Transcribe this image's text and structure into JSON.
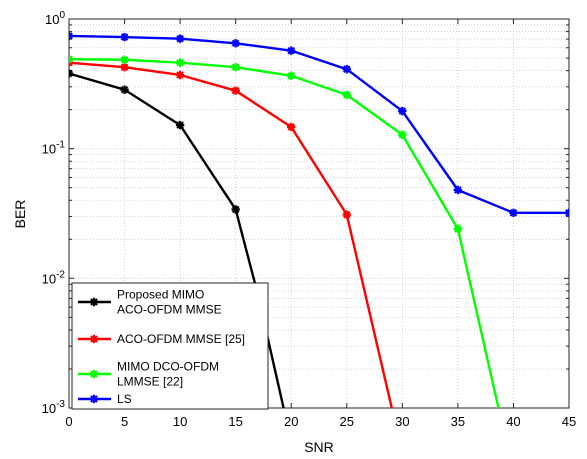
{
  "chart_data": {
    "type": "line",
    "xlabel": "SNR",
    "ylabel": "BER",
    "xlim": [
      0,
      45
    ],
    "ylim": [
      0.001,
      1
    ],
    "yscale": "log",
    "grid": true,
    "legend_position": "bottom-left",
    "x_ticks": [
      "0",
      "5",
      "10",
      "15",
      "20",
      "25",
      "30",
      "35",
      "40",
      "45"
    ],
    "y_ticks": [
      {
        "base": "10",
        "exp": "0",
        "value": 1
      },
      {
        "base": "10",
        "exp": "-1",
        "value": 0.1
      },
      {
        "base": "10",
        "exp": "-2",
        "value": 0.01
      },
      {
        "base": "10",
        "exp": "-3",
        "value": 0.001
      }
    ],
    "series": [
      {
        "name": "Proposed MIMO ACO-OFDM MMSE",
        "legend_lines": [
          "Proposed MIMO",
          "ACO-OFDM MMSE"
        ],
        "color": "#000000",
        "x": [
          0,
          5,
          10,
          15,
          17,
          19.5
        ],
        "y": [
          0.38,
          0.285,
          0.152,
          0.034,
          0.0075,
          0.00085
        ]
      },
      {
        "name": "ACO-OFDM MMSE [25]",
        "legend_lines": [
          "ACO-OFDM MMSE [25]"
        ],
        "color": "#ff0000",
        "x": [
          0,
          5,
          10,
          15,
          20,
          25,
          29.2
        ],
        "y": [
          0.46,
          0.425,
          0.37,
          0.28,
          0.147,
          0.031,
          0.00088
        ]
      },
      {
        "name": "MIMO DCO-OFDM LMMSE [22]",
        "legend_lines": [
          "MIMO DCO-OFDM",
          " LMMSE [22]"
        ],
        "color": "#00ff00",
        "x": [
          0,
          5,
          10,
          15,
          20,
          25,
          30,
          35,
          38.8
        ],
        "y": [
          0.49,
          0.485,
          0.46,
          0.425,
          0.365,
          0.26,
          0.128,
          0.024,
          0.00088
        ]
      },
      {
        "name": "LS",
        "legend_lines": [
          "LS"
        ],
        "color": "#0000ff",
        "x": [
          0,
          5,
          10,
          15,
          20,
          25,
          30,
          35,
          40,
          45
        ],
        "y": [
          0.74,
          0.725,
          0.705,
          0.65,
          0.57,
          0.41,
          0.195,
          0.048,
          0.032,
          0.032
        ]
      }
    ]
  }
}
